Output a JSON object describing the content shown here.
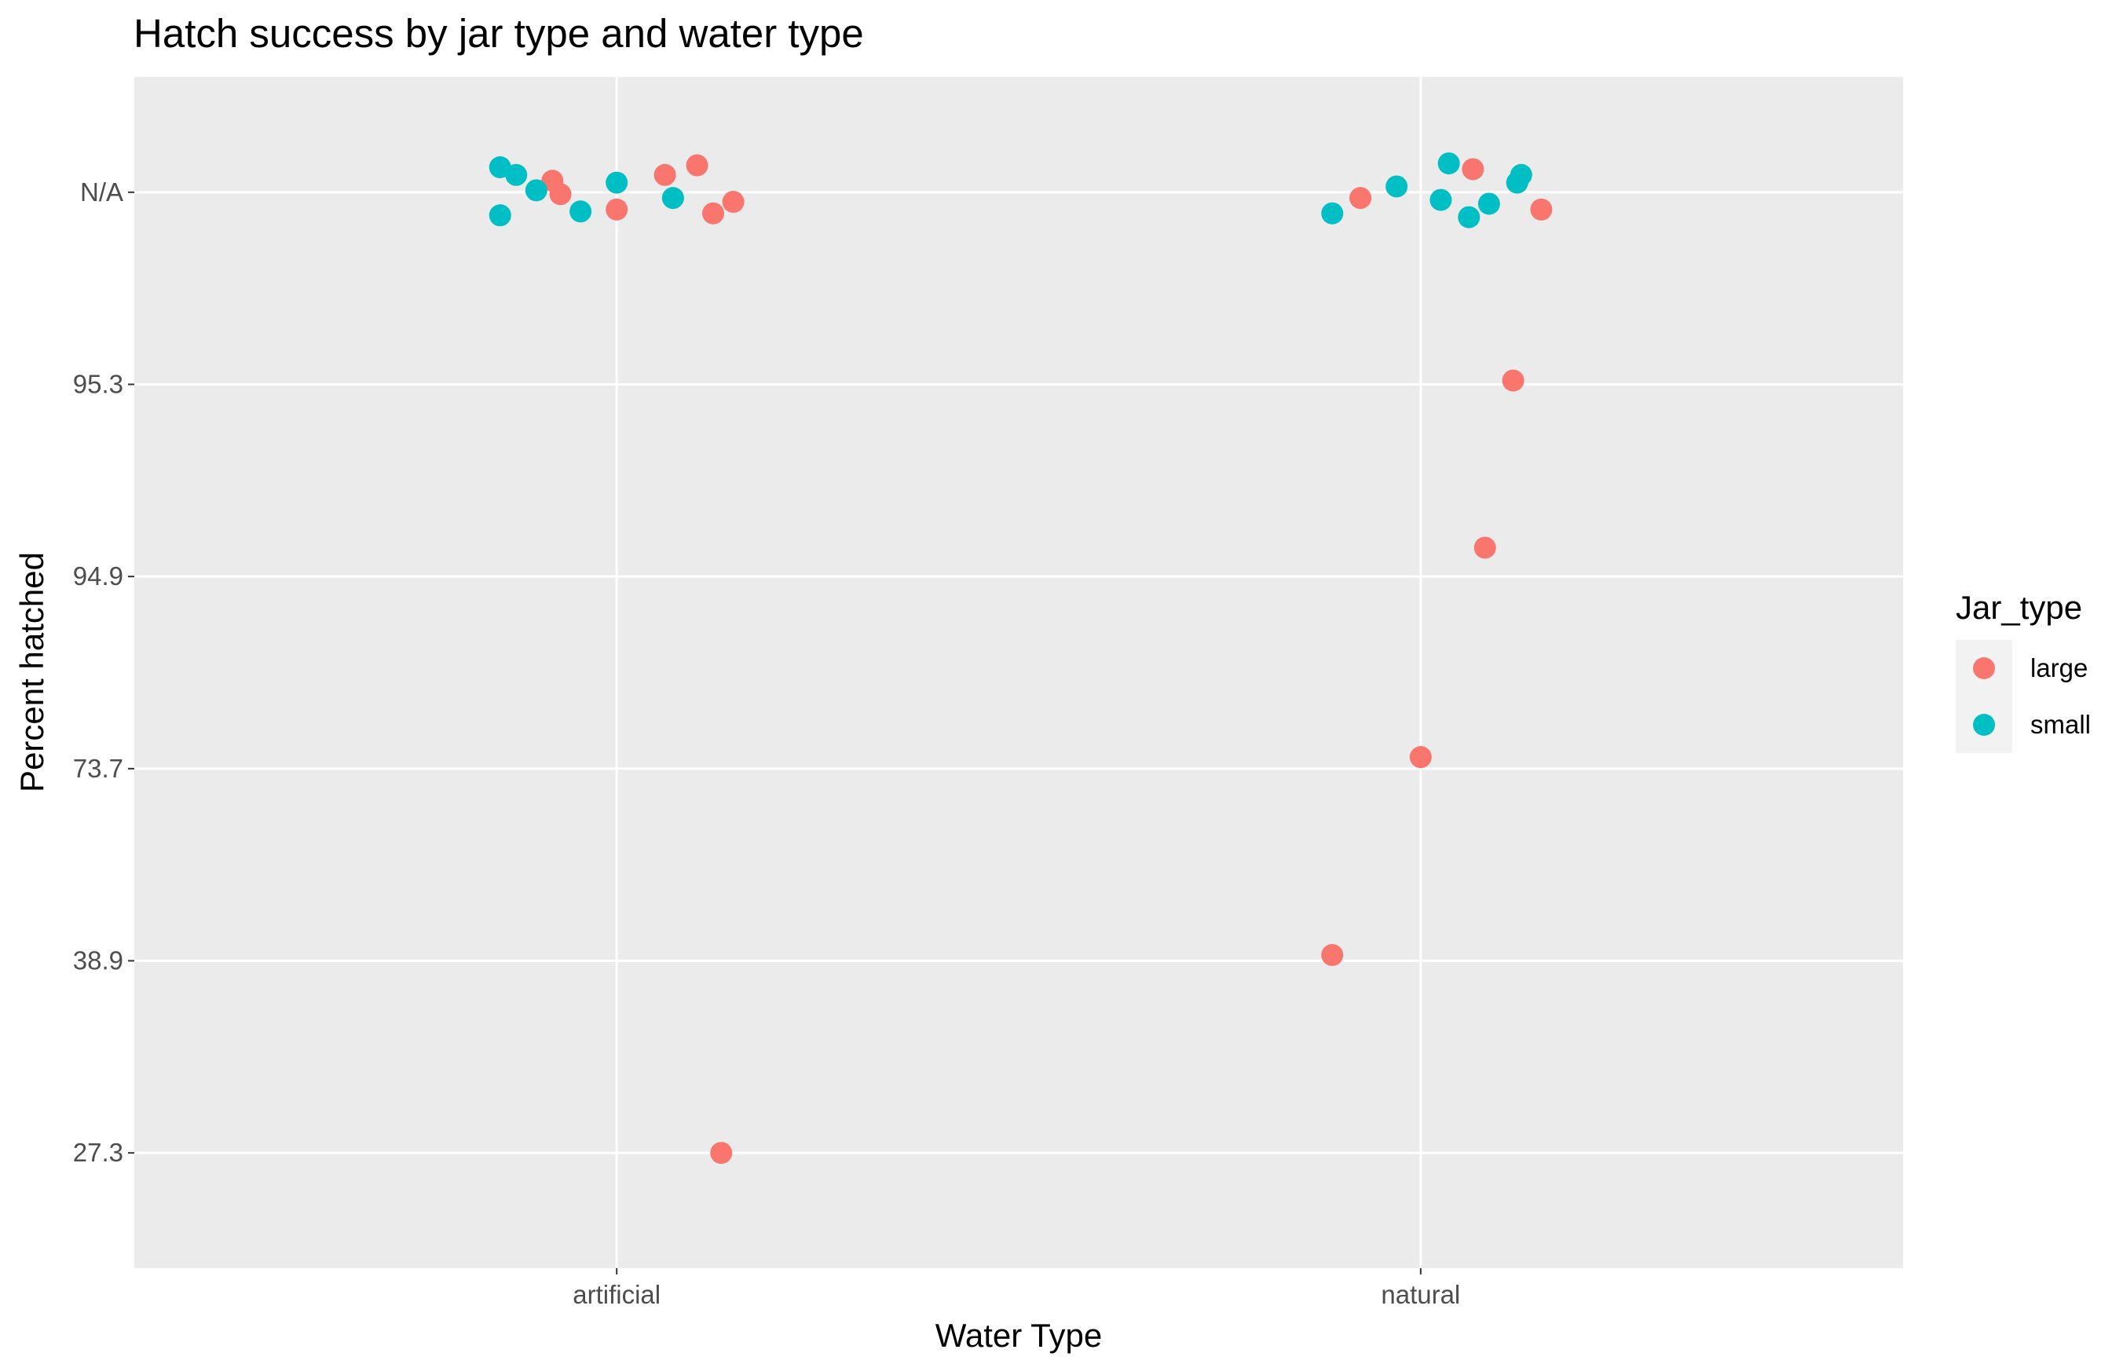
{
  "chart_data": {
    "type": "scatter",
    "title": "Hatch success by jar type and water type",
    "xlabel": "Water Type",
    "ylabel": "Percent hatched",
    "categories": [
      "artificial",
      "natural"
    ],
    "y_levels": [
      "27.3",
      "38.9",
      "73.7",
      "94.9",
      "95.3",
      "N/A"
    ],
    "y_scale": "discrete",
    "grid": true,
    "legend": {
      "title": "Jar_type",
      "position": "right",
      "entries": [
        {
          "label": "large",
          "color": "#F8766D"
        },
        {
          "label": "small",
          "color": "#00BFC4"
        }
      ]
    },
    "series": [
      {
        "name": "large",
        "color": "#F8766D",
        "points": [
          {
            "x": "artificial",
            "jitter": -0.08,
            "y": "N/A",
            "dy": 0.06
          },
          {
            "x": "artificial",
            "jitter": -0.07,
            "y": "N/A",
            "dy": -0.01
          },
          {
            "x": "artificial",
            "jitter": 0.0,
            "y": "N/A",
            "dy": -0.09
          },
          {
            "x": "artificial",
            "jitter": 0.06,
            "y": "N/A",
            "dy": 0.09
          },
          {
            "x": "artificial",
            "jitter": 0.1,
            "y": "N/A",
            "dy": 0.14
          },
          {
            "x": "artificial",
            "jitter": 0.12,
            "y": "N/A",
            "dy": -0.11
          },
          {
            "x": "artificial",
            "jitter": 0.145,
            "y": "N/A",
            "dy": -0.05
          },
          {
            "x": "artificial",
            "jitter": 0.13,
            "y": "27.3",
            "dy": 0.0
          },
          {
            "x": "natural",
            "jitter": -0.075,
            "y": "N/A",
            "dy": -0.03
          },
          {
            "x": "natural",
            "jitter": 0.065,
            "y": "N/A",
            "dy": 0.12
          },
          {
            "x": "natural",
            "jitter": 0.15,
            "y": "N/A",
            "dy": -0.09
          },
          {
            "x": "natural",
            "jitter": 0.115,
            "y": "95.3",
            "dy": 0.02
          },
          {
            "x": "natural",
            "jitter": 0.08,
            "y": "94.9",
            "dy": 0.15
          },
          {
            "x": "natural",
            "jitter": 0.0,
            "y": "73.7",
            "dy": 0.06
          },
          {
            "x": "natural",
            "jitter": -0.11,
            "y": "38.9",
            "dy": 0.03
          }
        ]
      },
      {
        "name": "small",
        "color": "#00BFC4",
        "points": [
          {
            "x": "artificial",
            "jitter": -0.145,
            "y": "N/A",
            "dy": 0.13
          },
          {
            "x": "artificial",
            "jitter": -0.125,
            "y": "N/A",
            "dy": 0.09
          },
          {
            "x": "artificial",
            "jitter": -0.1,
            "y": "N/A",
            "dy": 0.01
          },
          {
            "x": "artificial",
            "jitter": -0.145,
            "y": "N/A",
            "dy": -0.12
          },
          {
            "x": "artificial",
            "jitter": -0.045,
            "y": "N/A",
            "dy": -0.1
          },
          {
            "x": "artificial",
            "jitter": 0.0,
            "y": "N/A",
            "dy": 0.05
          },
          {
            "x": "artificial",
            "jitter": 0.07,
            "y": "N/A",
            "dy": -0.03
          },
          {
            "x": "natural",
            "jitter": -0.11,
            "y": "N/A",
            "dy": -0.11
          },
          {
            "x": "natural",
            "jitter": -0.03,
            "y": "N/A",
            "dy": 0.03
          },
          {
            "x": "natural",
            "jitter": 0.035,
            "y": "N/A",
            "dy": 0.15
          },
          {
            "x": "natural",
            "jitter": 0.025,
            "y": "N/A",
            "dy": -0.04
          },
          {
            "x": "natural",
            "jitter": 0.06,
            "y": "N/A",
            "dy": -0.13
          },
          {
            "x": "natural",
            "jitter": 0.085,
            "y": "N/A",
            "dy": -0.06
          },
          {
            "x": "natural",
            "jitter": 0.12,
            "y": "N/A",
            "dy": 0.05
          },
          {
            "x": "natural",
            "jitter": 0.125,
            "y": "N/A",
            "dy": 0.09
          }
        ]
      }
    ]
  }
}
